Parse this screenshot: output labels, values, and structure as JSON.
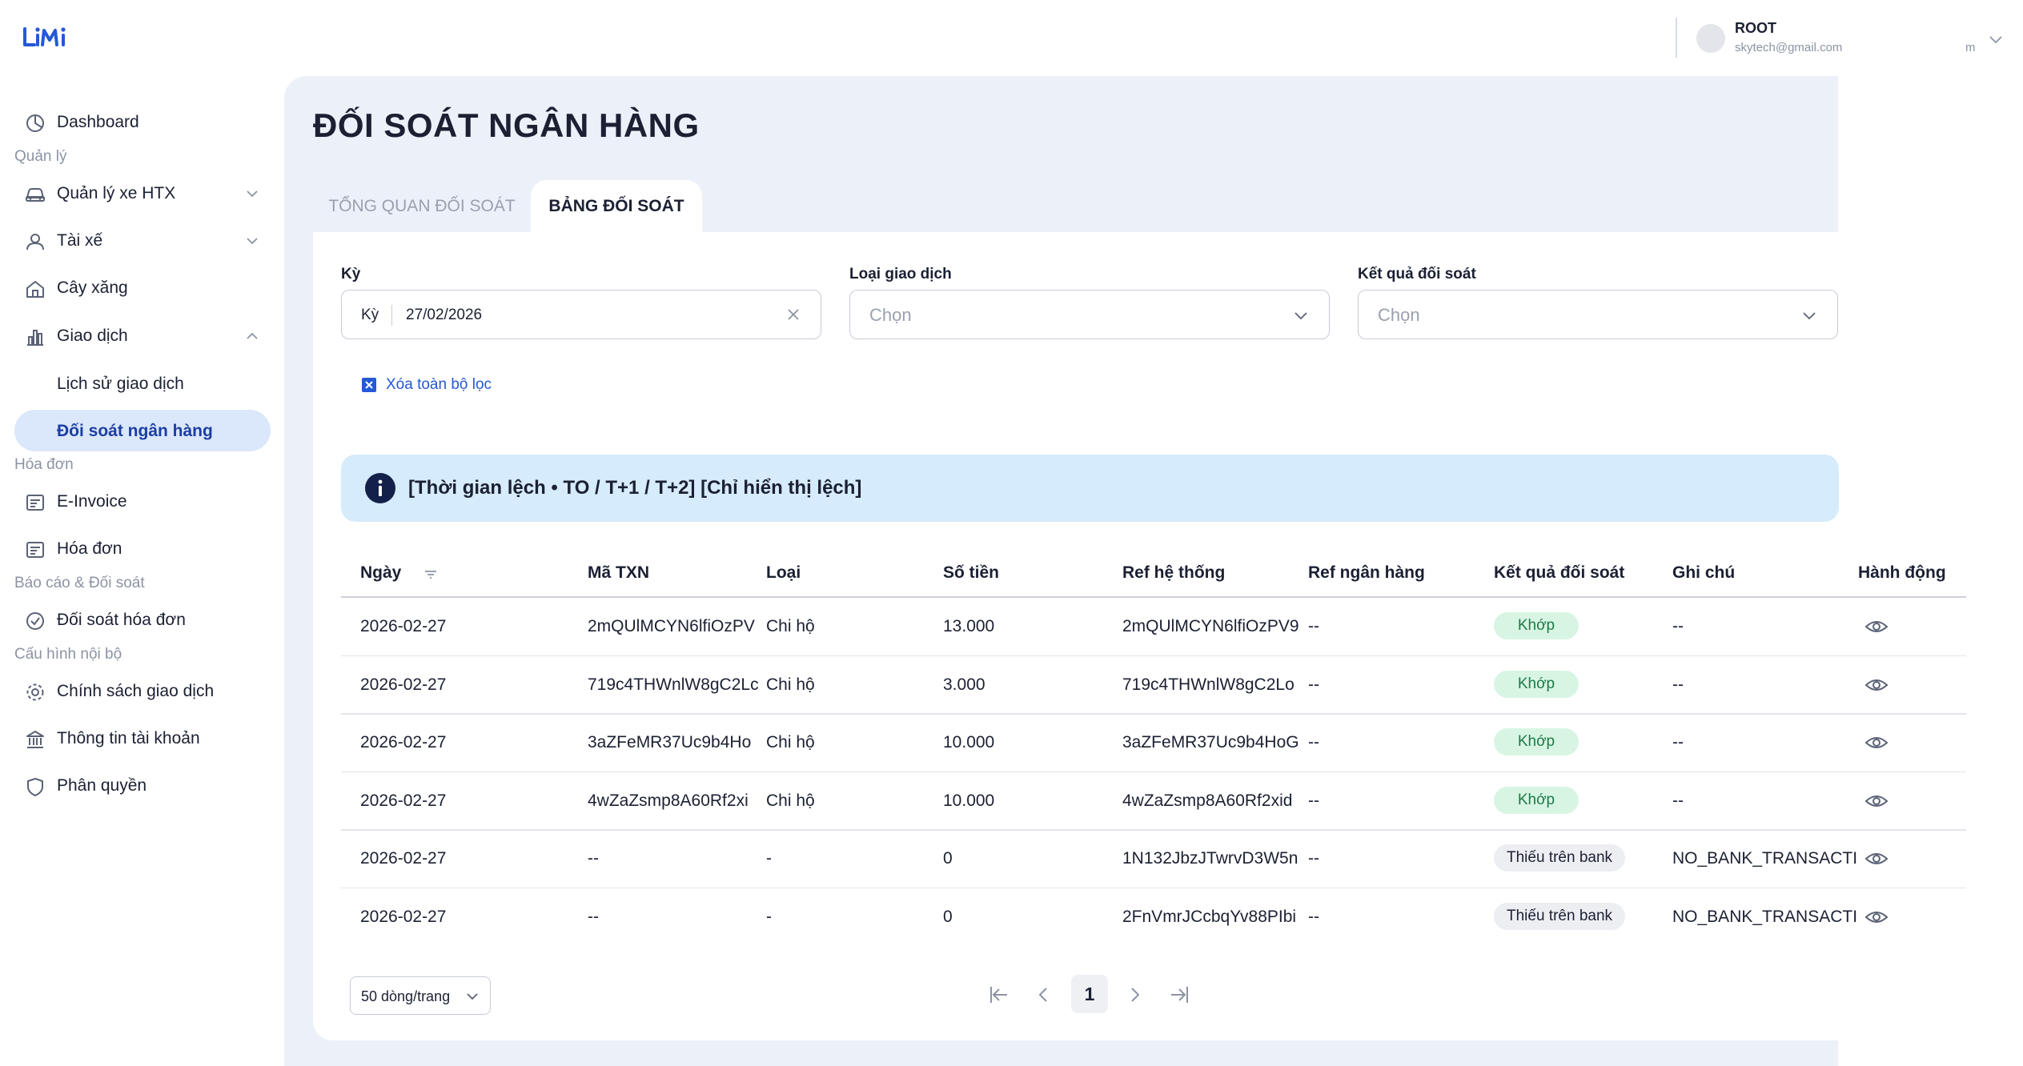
{
  "app": {
    "logo_text": "LiMi",
    "brand_color": "#2459d6"
  },
  "user": {
    "name": "ROOT",
    "email": "skytech@gmail.com",
    "email_overflow": "m"
  },
  "sidebar": {
    "items": [
      {
        "label": "Dashboard",
        "icon": "dashboard-icon"
      },
      {
        "group": "Quản lý"
      },
      {
        "label": "Quản lý xe HTX",
        "icon": "car-icon"
      },
      {
        "label": "Tài xế",
        "icon": "user-icon"
      },
      {
        "label": "Cây xăng",
        "icon": "home-icon"
      },
      {
        "label": "Giao dịch",
        "icon": "chart-icon"
      },
      {
        "label": "Lịch sử giao dịch"
      },
      {
        "label": "Đối soát ngân hàng"
      },
      {
        "group": "Hóa đơn"
      },
      {
        "label": "E-Invoice",
        "icon": "invoice-icon"
      },
      {
        "label": "Hóa đơn",
        "icon": "invoice-icon"
      },
      {
        "group": "Báo cáo & Đối soát"
      },
      {
        "label": "Đối soát hóa đơn",
        "icon": "check-circle-icon"
      },
      {
        "group": "Cấu hình nội bộ"
      },
      {
        "label": "Chính sách giao dịch",
        "icon": "gear-icon"
      },
      {
        "label": "Thông tin tài khoản",
        "icon": "bank-icon"
      },
      {
        "label": "Phân quyền",
        "icon": "shield-icon"
      }
    ]
  },
  "page": {
    "title": "ĐỐI SOÁT NGÂN HÀNG",
    "tabs": [
      "TỔNG QUAN ĐỐI SOÁT",
      "BẢNG ĐỐI SOÁT"
    ],
    "active_tab": "BẢNG ĐỐI SOÁT"
  },
  "filters": {
    "period": {
      "label": "Kỳ",
      "prefix": "Kỳ",
      "value": "27/02/2026"
    },
    "type": {
      "label": "Loại giao dịch",
      "placeholder": "Chọn"
    },
    "result": {
      "label": "Kết quả đối soát",
      "placeholder": "Chọn"
    },
    "clear_all": "Xóa toàn bộ lọc"
  },
  "info": {
    "text": "[Thời gian lệch • TO / T+1 / T+2] [Chỉ hiển thị lệch]"
  },
  "table": {
    "headers": [
      "Ngày",
      "Mã TXN",
      "Loại",
      "Số tiền",
      "Ref hệ thống",
      "Ref ngân hàng",
      "Kết quả đối soát",
      "Ghi chú",
      "Hành động"
    ],
    "rows": [
      {
        "date": "2026-02-27",
        "txn": "2mQUlMCYN6lfiOzPV",
        "type": "Chi hộ",
        "amount": "13.000",
        "sys_ref": "2mQUlMCYN6lfiOzPV9",
        "bank_ref": "--",
        "result": "Khớp",
        "status": "ok",
        "note": "--"
      },
      {
        "date": "2026-02-27",
        "txn": "719c4THWnlW8gC2Lc",
        "type": "Chi hộ",
        "amount": "3.000",
        "sys_ref": "719c4THWnlW8gC2Lo",
        "bank_ref": "--",
        "result": "Khớp",
        "status": "ok",
        "note": "--"
      },
      {
        "date": "2026-02-27",
        "txn": "3aZFeMR37Uc9b4Ho",
        "type": "Chi hộ",
        "amount": "10.000",
        "sys_ref": "3aZFeMR37Uc9b4HoG",
        "bank_ref": "--",
        "result": "Khớp",
        "status": "ok",
        "note": "--"
      },
      {
        "date": "2026-02-27",
        "txn": "4wZaZsmp8A60Rf2xi",
        "type": "Chi hộ",
        "amount": "10.000",
        "sys_ref": "4wZaZsmp8A60Rf2xid",
        "bank_ref": "--",
        "result": "Khớp",
        "status": "ok",
        "note": "--"
      },
      {
        "date": "2026-02-27",
        "txn": "--",
        "type": "-",
        "amount": "0",
        "sys_ref": "1N132JbzJTwrvD3W5n",
        "bank_ref": "--",
        "result": "Thiếu trên bank",
        "status": "miss",
        "note": "NO_BANK_TRANSACTI"
      },
      {
        "date": "2026-02-27",
        "txn": "--",
        "type": "-",
        "amount": "0",
        "sys_ref": "2FnVmrJCcbqYv88PIbi",
        "bank_ref": "--",
        "result": "Thiếu trên bank",
        "status": "miss",
        "note": "NO_BANK_TRANSACTI"
      }
    ]
  },
  "pagination": {
    "page_size": "50 dòng/trang",
    "current_page": "1"
  }
}
